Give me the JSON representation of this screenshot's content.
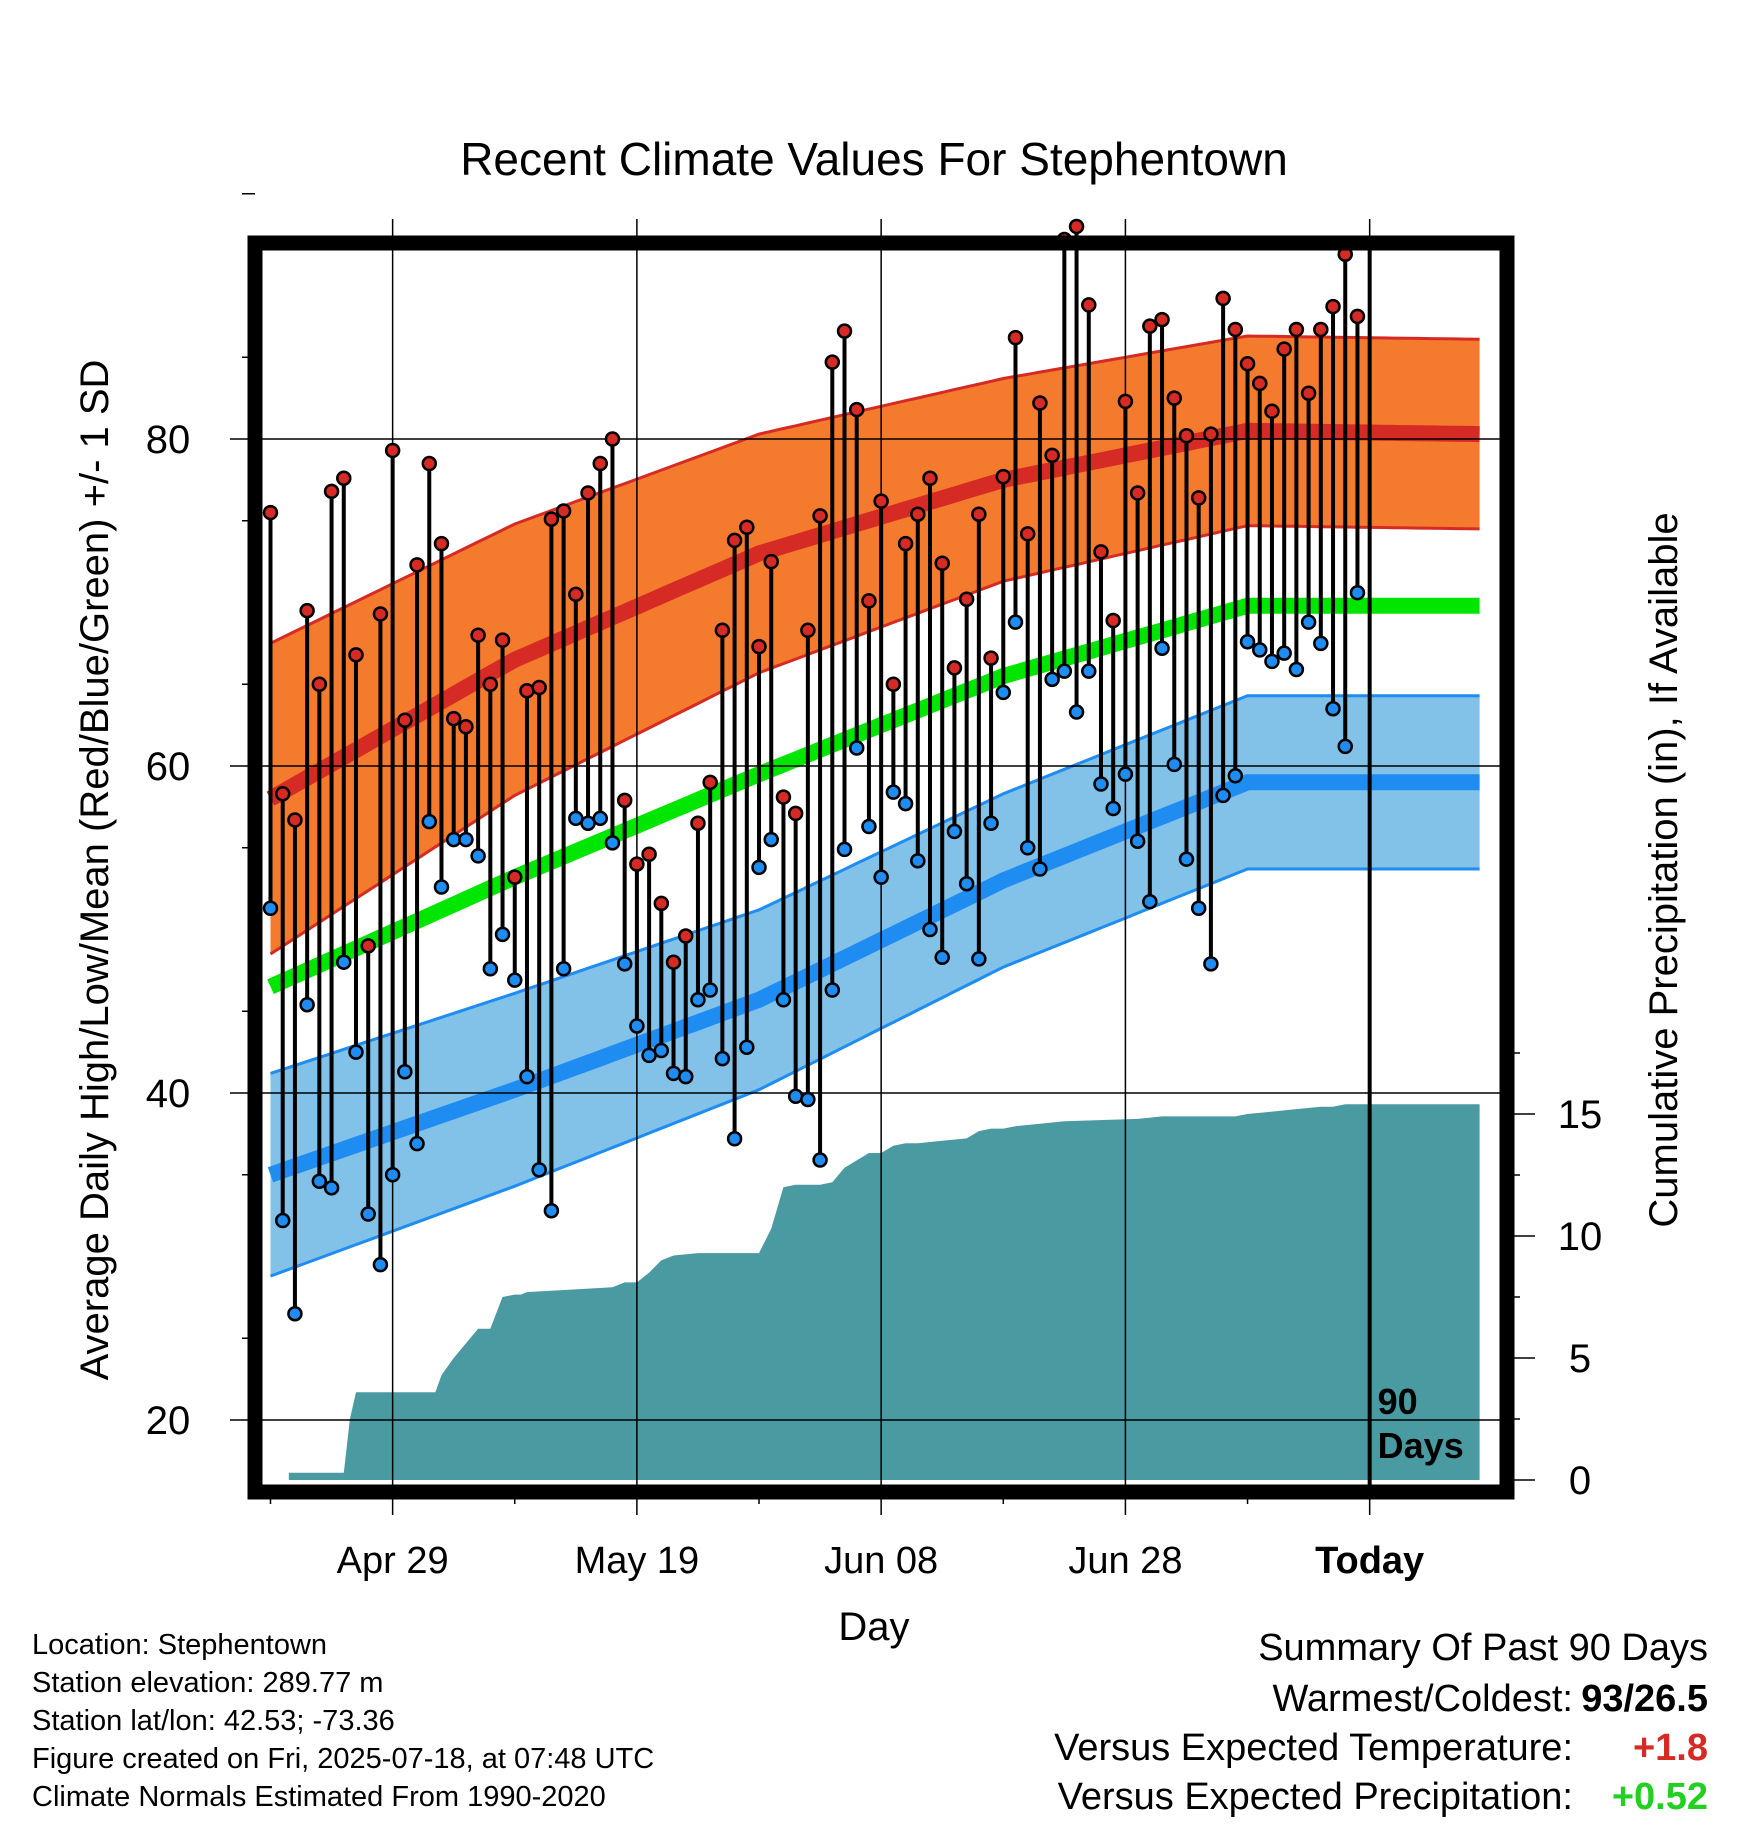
{
  "chart_data": {
    "type": "line",
    "title": "Recent Climate Values For Stephentown",
    "xlabel": "Day",
    "ylabel": "Average Daily High/Low/Mean (Red/Blue/Green) +/- 1 SD",
    "y2label": "Cumulative Precipitation (in), If Available",
    "x_ticks": [
      "Apr 29",
      "May 19",
      "Jun 08",
      "Jun 28",
      "Today"
    ],
    "y_ticks": [
      20,
      40,
      60,
      80
    ],
    "y2_ticks": [
      0,
      5,
      10,
      15
    ],
    "ylim": [
      17,
      99
    ],
    "y2lim": [
      0,
      40
    ],
    "grid": true,
    "today_marker": "90\nDays",
    "colors": {
      "high_band": "#f47a2e",
      "high_band_edge": "#d62a24",
      "high_mean": "#d62a24",
      "low_band": "#82c1e8",
      "low_band_edge": "#1e8cf0",
      "low_mean": "#1e8cf0",
      "mean": "#00e600",
      "precip": "#4a9aa2",
      "high_dot": "#d62a24",
      "low_dot": "#1e8cf0"
    },
    "normals": {
      "x": [
        0,
        20,
        40,
        60,
        80,
        99
      ],
      "high": [
        58,
        66.5,
        73,
        77.5,
        80.5,
        80.3
      ],
      "high_sd": [
        9.5,
        8.3,
        7.3,
        6.2,
        5.8,
        5.8
      ],
      "low": [
        35,
        40.2,
        45.7,
        53,
        59,
        59
      ],
      "low_sd": [
        6.2,
        5.9,
        5.5,
        5.3,
        5.3,
        5.3
      ],
      "mean": [
        46.5,
        53.2,
        59.5,
        65.5,
        69.8,
        69.8
      ]
    },
    "daily": {
      "day": [
        0,
        1,
        2,
        3,
        4,
        5,
        6,
        7,
        8,
        9,
        10,
        11,
        12,
        13,
        14,
        15,
        16,
        17,
        18,
        19,
        20,
        21,
        22,
        23,
        24,
        25,
        26,
        27,
        28,
        29,
        30,
        31,
        32,
        33,
        34,
        35,
        36,
        37,
        38,
        39,
        40,
        41,
        42,
        43,
        44,
        45,
        46,
        47,
        48,
        49,
        50,
        51,
        52,
        53,
        54,
        55,
        56,
        57,
        58,
        59,
        60,
        61,
        62,
        63,
        64,
        65,
        66,
        67,
        68,
        69,
        70,
        71,
        72,
        73,
        74,
        75,
        76,
        77,
        78,
        79,
        80,
        81,
        82,
        83,
        84,
        85,
        86,
        87,
        88,
        89
      ],
      "high": [
        75.5,
        58.3,
        56.7,
        69.5,
        65,
        76.8,
        77.6,
        66.8,
        49,
        69.3,
        79.3,
        62.8,
        72.3,
        78.5,
        73.6,
        62.9,
        62.4,
        68,
        65,
        67.7,
        53.2,
        64.6,
        64.8,
        75.1,
        75.6,
        70.5,
        76.7,
        78.5,
        80,
        57.9,
        54,
        54.6,
        51.6,
        48,
        49.6,
        56.5,
        59,
        68.3,
        73.8,
        74.6,
        67.3,
        72.5,
        58.1,
        57.1,
        68.3,
        75.3,
        84.7,
        86.6,
        81.8,
        70.1,
        76.2,
        65,
        73.6,
        75.4,
        77.6,
        72.4,
        66,
        70.2,
        75.4,
        66.6,
        77.7,
        86.2,
        74.2,
        82.2,
        79,
        92.2,
        93,
        88.2,
        73.1,
        68.9,
        82.3,
        76.7,
        86.9,
        87.3,
        82.5,
        80.2,
        76.4,
        80.3,
        88.6,
        86.7,
        84.6,
        83.4,
        81.7,
        85.5,
        86.7,
        82.8,
        86.7,
        88.1,
        91.3,
        87.5
      ],
      "low": [
        51.3,
        32.2,
        26.5,
        45.4,
        34.6,
        34.2,
        48,
        42.5,
        32.6,
        29.5,
        35,
        41.3,
        36.9,
        56.6,
        52.6,
        55.5,
        55.5,
        54.5,
        47.6,
        49.7,
        46.9,
        41,
        35.3,
        32.8,
        47.6,
        56.8,
        56.5,
        56.8,
        55.3,
        47.9,
        44.1,
        42.3,
        42.6,
        41.2,
        41,
        45.7,
        46.3,
        42.1,
        37.2,
        42.8,
        53.8,
        55.5,
        45.7,
        39.8,
        39.6,
        35.9,
        46.3,
        54.9,
        61.1,
        56.3,
        53.2,
        58.4,
        57.7,
        54.2,
        50,
        48.3,
        56,
        52.8,
        48.2,
        56.5,
        64.5,
        68.8,
        55,
        53.7,
        65.3,
        65.8,
        63.3,
        65.8,
        58.9,
        57.4,
        59.5,
        55.4,
        51.7,
        67.2,
        60.1,
        54.3,
        51.3,
        47.9,
        58.2,
        59.4,
        67.6,
        67.1,
        66.4,
        66.9,
        65.9,
        68.8,
        67.5,
        63.5,
        61.2,
        70.6
      ]
    },
    "precip_cum": {
      "x": [
        1.5,
        6,
        6.5,
        7,
        13.5,
        14,
        15,
        16,
        17,
        18,
        19,
        20,
        20.5,
        21,
        28,
        29,
        30,
        31,
        32,
        33,
        35,
        36,
        40,
        41,
        42,
        43,
        45,
        46,
        47,
        48,
        49,
        50,
        51,
        52,
        53,
        55,
        57,
        58,
        59,
        60,
        61,
        63,
        65,
        71,
        73,
        75,
        77,
        79,
        80,
        82,
        84,
        86,
        87,
        88,
        89,
        89.5,
        99
      ],
      "y": [
        0.3,
        0.3,
        2.5,
        3.6,
        3.6,
        4.3,
        5,
        5.6,
        6.2,
        6.2,
        7.5,
        7.6,
        7.6,
        7.7,
        7.9,
        8.1,
        8.1,
        8.5,
        9,
        9.2,
        9.3,
        9.3,
        9.3,
        10.3,
        12,
        12.1,
        12.1,
        12.2,
        12.8,
        13.1,
        13.4,
        13.4,
        13.7,
        13.8,
        13.8,
        13.9,
        14,
        14.3,
        14.4,
        14.4,
        14.5,
        14.6,
        14.7,
        14.8,
        14.9,
        14.9,
        14.9,
        14.9,
        15,
        15.1,
        15.2,
        15.3,
        15.3,
        15.4,
        15.4,
        15.4,
        15.4
      ]
    }
  },
  "info": {
    "location": "Location: Stephentown",
    "elevation": "Station elevation: 289.77 m",
    "latlon": "Station lat/lon: 42.53; -73.36",
    "created": "Figure created on Fri, 2025-07-18, at 07:48 UTC",
    "normals_note": "Climate Normals Estimated From 1990-2020"
  },
  "summary": {
    "title": "Summary Of Past 90 Days",
    "warmest_label": "Warmest/Coldest:",
    "warmest_value": "93/26.5",
    "temp_label": "Versus Expected Temperature:",
    "temp_value": "+1.8",
    "temp_color": "#d62a24",
    "precip_label": "Versus Expected Precipitation:",
    "precip_value": "+0.52",
    "precip_color": "#22d022"
  }
}
